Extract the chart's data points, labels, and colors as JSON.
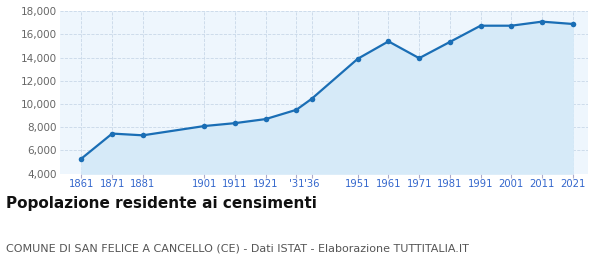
{
  "years": [
    1861,
    1871,
    1881,
    1901,
    1911,
    1921,
    1931,
    1936,
    1951,
    1961,
    1971,
    1981,
    1991,
    2001,
    2011,
    2021
  ],
  "population": [
    5300,
    7450,
    7300,
    8100,
    8350,
    8700,
    9500,
    10450,
    13900,
    15400,
    13950,
    15350,
    16750,
    16750,
    17100,
    16900
  ],
  "line_color": "#1a6eb5",
  "fill_color": "#d6eaf8",
  "marker_color": "#1a6eb5",
  "bg_color": "#eef6fd",
  "grid_color": "#c8d8e8",
  "ylim": [
    4000,
    18000
  ],
  "yticks": [
    4000,
    6000,
    8000,
    10000,
    12000,
    14000,
    16000,
    18000
  ],
  "xlim_left": 1854,
  "xlim_right": 2026,
  "xtick_positions": [
    1861,
    1871,
    1881,
    1901,
    1911,
    1921,
    1931,
    1936,
    1951,
    1961,
    1971,
    1981,
    1991,
    2001,
    2011,
    2021
  ],
  "xtick_labels": [
    "1861",
    "1871",
    "1881",
    "1901",
    "1911",
    "1921",
    "'31",
    "'36",
    "1951",
    "1961",
    "1971",
    "1981",
    "1991",
    "2001",
    "2011",
    "2021"
  ],
  "xtick_color": "#3366cc",
  "ytick_color": "#666666",
  "title": "Popolazione residente ai censimenti",
  "subtitle": "COMUNE DI SAN FELICE A CANCELLO (CE) - Dati ISTAT - Elaborazione TUTTITALIA.IT",
  "title_fontsize": 11,
  "subtitle_fontsize": 8,
  "title_color": "#111111",
  "subtitle_color": "#555555"
}
